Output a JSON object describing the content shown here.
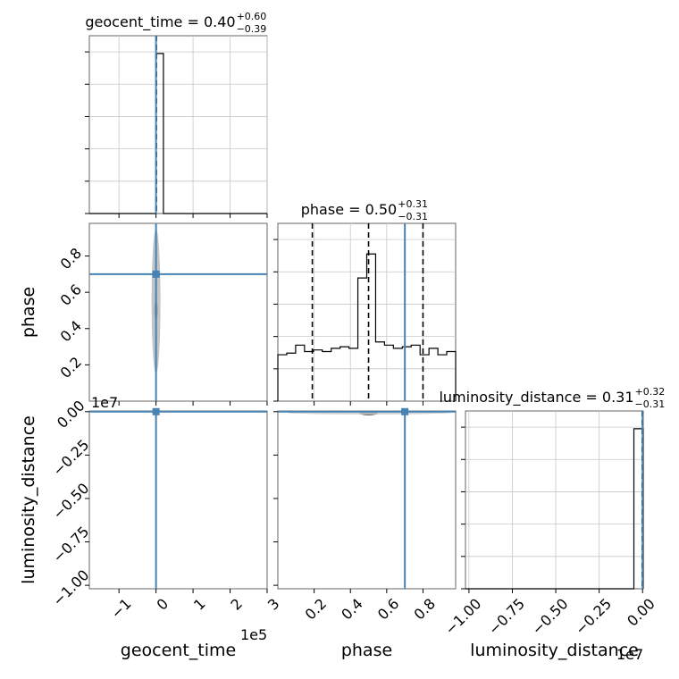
{
  "chart_data": {
    "type": "corner",
    "truth_color": "#4682b4",
    "parameters": [
      {
        "key": "geocent_time",
        "label": "geocent_time",
        "title": {
          "prefix": "geocent_time = 0.40",
          "plus": "+0.60",
          "minus": "−0.39"
        },
        "range": [
          -180000,
          300000
        ],
        "ticks": [
          -100000,
          0,
          100000,
          200000,
          300000
        ],
        "tick_labels": [
          "−1",
          "0",
          "1",
          "2",
          "3"
        ],
        "offset_label": "1e5",
        "truth": 0,
        "quantiles": [
          0.01,
          0.4,
          1.0
        ]
      },
      {
        "key": "phase",
        "label": "phase",
        "title": {
          "prefix": "phase = 0.50",
          "plus": "+0.31",
          "minus": "−0.31"
        },
        "range": [
          0.0,
          0.98
        ],
        "ticks": [
          0.2,
          0.4,
          0.6,
          0.8
        ],
        "tick_labels": [
          "0.2",
          "0.4",
          "0.6",
          "0.8"
        ],
        "truth": 0.7,
        "quantiles": [
          0.19,
          0.5,
          0.8
        ]
      },
      {
        "key": "luminosity_distance",
        "label": "luminosity_distance",
        "title": {
          "prefix": "luminosity_distance = 0.31",
          "plus": "+0.32",
          "minus": "−0.31"
        },
        "range": [
          -10200000,
          40000
        ],
        "ticks": [
          -10000000,
          -7500000,
          -5000000,
          -2500000,
          0
        ],
        "tick_labels": [
          "−1.00",
          "−0.75",
          "−0.50",
          "−0.25",
          "0.00"
        ],
        "offset_label": "1e7",
        "truth": 0,
        "quantiles": [
          0.0,
          0.31,
          0.63
        ]
      }
    ],
    "histograms": {
      "geocent_time": {
        "bin_edges": [
          -180000,
          -160000,
          -140000,
          -120000,
          -100000,
          -80000,
          -60000,
          -40000,
          -20000,
          0,
          20000,
          40000,
          60000,
          80000,
          100000,
          120000,
          140000,
          160000,
          180000,
          200000,
          220000,
          240000,
          260000,
          280000,
          300000
        ],
        "counts": [
          0,
          0,
          0,
          0,
          0,
          0,
          0,
          0,
          0,
          1.0,
          0,
          0,
          0,
          0,
          0,
          0,
          0,
          0,
          0,
          0,
          0,
          0,
          0,
          0
        ],
        "ymax": 1.0
      },
      "phase": {
        "bin_edges": [
          0.0,
          0.049,
          0.098,
          0.147,
          0.196,
          0.245,
          0.294,
          0.343,
          0.392,
          0.441,
          0.49,
          0.539,
          0.588,
          0.637,
          0.686,
          0.735,
          0.784,
          0.833,
          0.882,
          0.931,
          0.98
        ],
        "counts": [
          0.29,
          0.3,
          0.35,
          0.31,
          0.32,
          0.31,
          0.33,
          0.34,
          0.33,
          0.77,
          0.92,
          0.37,
          0.35,
          0.33,
          0.34,
          0.35,
          0.29,
          0.33,
          0.29,
          0.31
        ],
        "ymax": 1.0
      },
      "luminosity_distance": {
        "bin_edges": [
          -10200000,
          -10000000,
          -500000,
          0,
          40000
        ],
        "counts": [
          0,
          0,
          1.0,
          1.0
        ],
        "ymax": 1.0
      }
    },
    "joint_blobs": [
      {
        "row": 1,
        "col": 0,
        "x": 0,
        "y": 0.5,
        "sx": 5000,
        "sy": 0.05,
        "color": "#000000"
      },
      {
        "row": 1,
        "col": 0,
        "x": 0,
        "y": 0.55,
        "sx": 12000,
        "sy": 0.4,
        "color": "#bbbbbb"
      },
      {
        "row": 2,
        "col": 0,
        "x": 0,
        "y": -80000,
        "sx": 5000,
        "sy": 60000,
        "color": "#222222"
      },
      {
        "row": 2,
        "col": 1,
        "x": 0.5,
        "y": -100000,
        "sx": 0.05,
        "sy": 50000,
        "color": "#111111"
      },
      {
        "row": 2,
        "col": 1,
        "x": 0.5,
        "y": -60000,
        "sx": 0.45,
        "sy": 80000,
        "color": "#cccccc"
      }
    ]
  }
}
